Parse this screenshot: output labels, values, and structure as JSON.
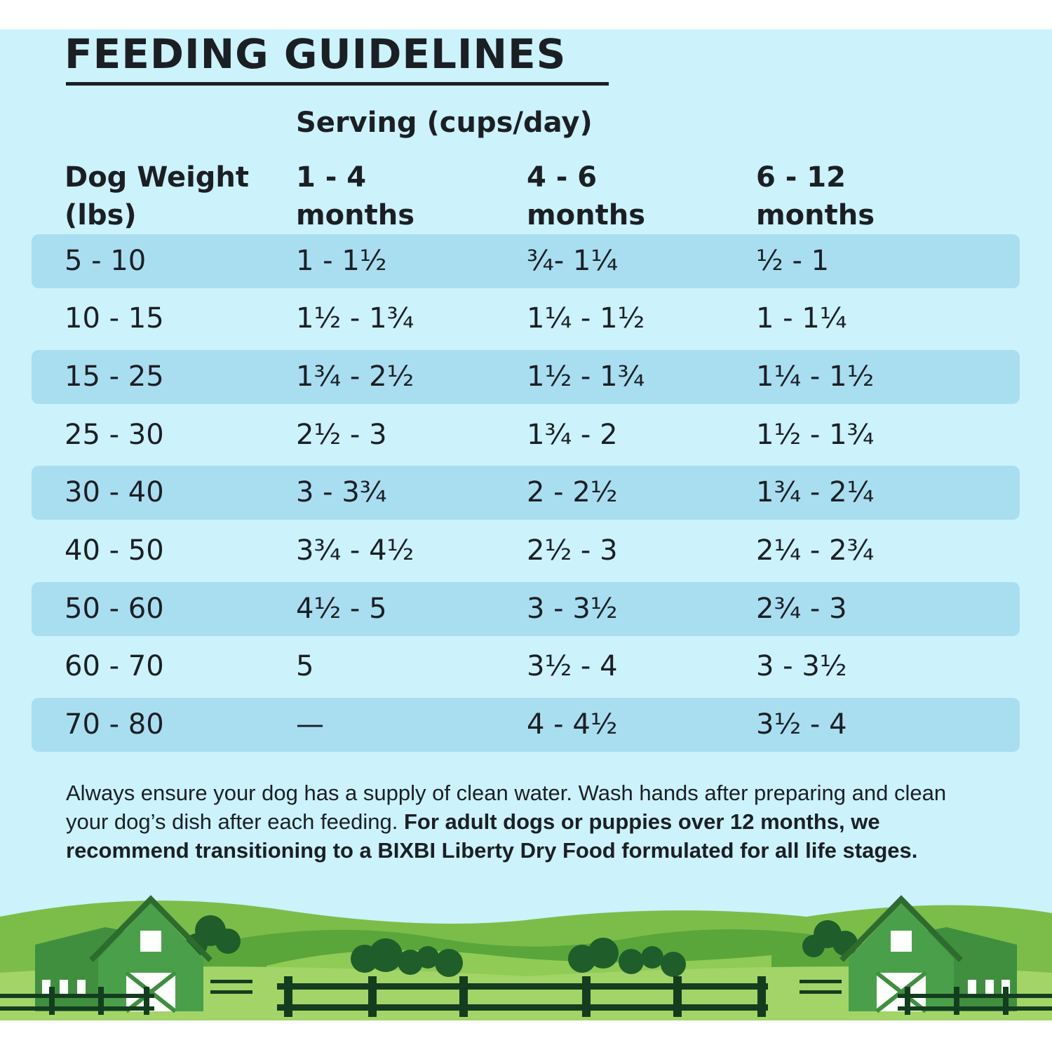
{
  "title": "FEEDING GUIDELINES",
  "serving_header": "Serving (cups/day)",
  "columns": {
    "weight": [
      "Dog Weight",
      "(lbs)"
    ],
    "age1": [
      "1 - 4",
      "months"
    ],
    "age2": [
      "4 - 6",
      "months"
    ],
    "age3": [
      "6 - 12",
      "months"
    ]
  },
  "rows": [
    {
      "weight": "5 - 10",
      "a": "1 - 1½",
      "b": "¾- 1¼",
      "c": "½ - 1"
    },
    {
      "weight": "10 - 15",
      "a": "1½ - 1¾",
      "b": "1¼ - 1½",
      "c": "1 - 1¼"
    },
    {
      "weight": "15 - 25",
      "a": "1¾ - 2½",
      "b": "1½ - 1¾",
      "c": "1¼ - 1½"
    },
    {
      "weight": "25 - 30",
      "a": "2½ - 3",
      "b": "1¾ - 2",
      "c": "1½ - 1¾"
    },
    {
      "weight": "30 - 40",
      "a": "3 - 3¾",
      "b": "2 - 2½",
      "c": "1¾ - 2¼"
    },
    {
      "weight": "40 - 50",
      "a": "3¾ - 4½",
      "b": "2½ - 3",
      "c": "2¼ - 2¾"
    },
    {
      "weight": "50 - 60",
      "a": "4½ - 5",
      "b": "3 - 3½",
      "c": "2¾ - 3"
    },
    {
      "weight": "60 - 70",
      "a": "5",
      "b": "3½ - 4",
      "c": "3 - 3½"
    },
    {
      "weight": "70 - 80",
      "a": "—",
      "b": "4 - 4½",
      "c": "3½ - 4"
    }
  ],
  "note": {
    "regular": "Always ensure your dog has a supply of clean water. Wash hands after preparing and clean your dog’s dish after each feeding. ",
    "bold": "For adult dogs or puppies over 12 months, we recommend transitioning to a BIXBI Liberty Dry Food formulated for all life stages."
  },
  "colors": {
    "background": "#ccf2fb",
    "row_shade": "#a9def1",
    "text": "#1b1f24",
    "grass_dark": "#2e7d32",
    "grass_light": "#8bc34a"
  },
  "illustration": [
    "barn-icon",
    "barn-icon",
    "tree-icon",
    "fence-icon",
    "hills-icon"
  ]
}
